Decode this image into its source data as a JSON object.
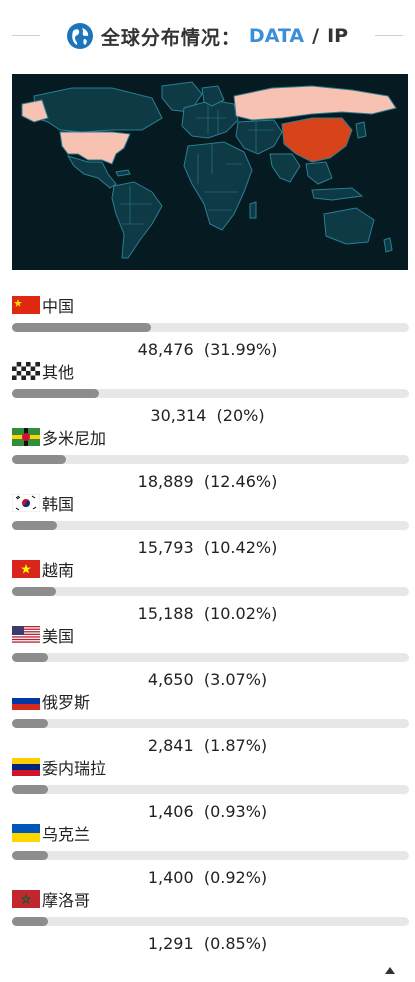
{
  "header": {
    "title": "全球分布情况：",
    "data_label": "DATA",
    "slash": "/",
    "ip_label": "IP"
  },
  "colors": {
    "map_background": "#061a22",
    "country_default": "#0e3a46",
    "country_border": "#2a7f92",
    "country_low": "#f7c2b1",
    "country_high": "#d9431a",
    "bar_track": "#e7e7e7",
    "bar_fill": "#8d8d8d",
    "accent": "#3a8fd6"
  },
  "countries": [
    {
      "name": "中国",
      "flag": "china-flag-icon",
      "count": "48,476",
      "percent_text": "(31.99%)",
      "percent": 31.99
    },
    {
      "name": "其他",
      "flag": "checkered-flag-icon",
      "count": "30,314",
      "percent_text": "(20%)",
      "percent": 20
    },
    {
      "name": "多米尼加",
      "flag": "dominica-flag-icon",
      "count": "18,889",
      "percent_text": "(12.46%)",
      "percent": 12.46
    },
    {
      "name": "韩国",
      "flag": "south-korea-flag-icon",
      "count": "15,793",
      "percent_text": "(10.42%)",
      "percent": 10.42
    },
    {
      "name": "越南",
      "flag": "vietnam-flag-icon",
      "count": "15,188",
      "percent_text": "(10.02%)",
      "percent": 10.02
    },
    {
      "name": "美国",
      "flag": "usa-flag-icon",
      "count": "4,650",
      "percent_text": "(3.07%)",
      "percent": 3.07
    },
    {
      "name": "俄罗斯",
      "flag": "russia-flag-icon",
      "count": "2,841",
      "percent_text": "(1.87%)",
      "percent": 1.87
    },
    {
      "name": "委内瑞拉",
      "flag": "venezuela-flag-icon",
      "count": "1,406",
      "percent_text": "(0.93%)",
      "percent": 0.93
    },
    {
      "name": "乌克兰",
      "flag": "ukraine-flag-icon",
      "count": "1,400",
      "percent_text": "(0.92%)",
      "percent": 0.92
    },
    {
      "name": "摩洛哥",
      "flag": "morocco-flag-icon",
      "count": "1,291",
      "percent_text": "(0.85%)",
      "percent": 0.85
    }
  ]
}
